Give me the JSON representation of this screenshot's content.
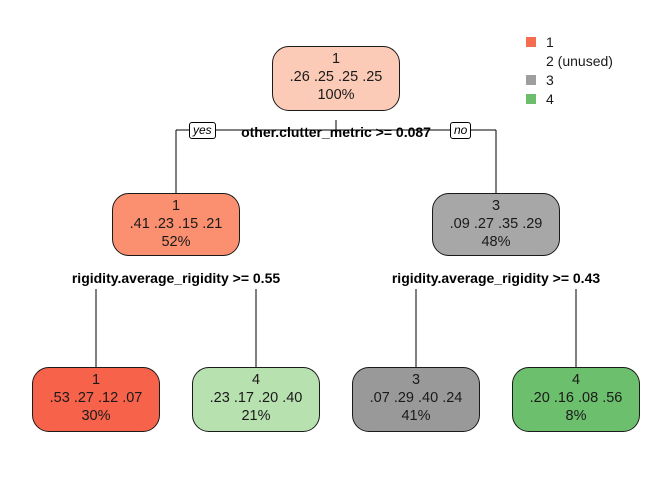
{
  "legend": [
    {
      "label": "1",
      "color": "#f46d4e"
    },
    {
      "label": "2 (unused)",
      "color": ""
    },
    {
      "label": "3",
      "color": "#9e9e9e"
    },
    {
      "label": "4",
      "color": "#6cbe6c"
    }
  ],
  "tree": {
    "root": {
      "cls": "1",
      "probs": ".26  .25  .25  .25",
      "pct": "100%",
      "color": "#fccbb7"
    },
    "root_split": "other.clutter_metric >= 0.087",
    "yes_label": "yes",
    "no_label": "no",
    "left": {
      "cls": "1",
      "probs": ".41  .23  .15  .21",
      "pct": "52%",
      "color": "#fb9070"
    },
    "left_split": "rigidity.average_rigidity >= 0.55",
    "right": {
      "cls": "3",
      "probs": ".09  .27  .35  .29",
      "pct": "48%",
      "color": "#a7a7a7"
    },
    "right_split": "rigidity.average_rigidity >= 0.43",
    "leaves": [
      {
        "cls": "1",
        "probs": ".53  .27  .12  .07",
        "pct": "30%",
        "color": "#f7624a"
      },
      {
        "cls": "4",
        "probs": ".23  .17  .20  .40",
        "pct": "21%",
        "color": "#b8e1b0"
      },
      {
        "cls": "3",
        "probs": ".07  .29  .40  .24",
        "pct": "41%",
        "color": "#999999"
      },
      {
        "cls": "4",
        "probs": ".20  .16  .08  .56",
        "pct": "8%",
        "color": "#6cbf6c"
      }
    ]
  }
}
